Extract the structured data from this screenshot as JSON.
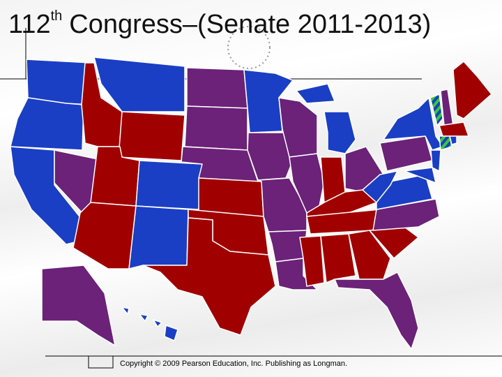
{
  "title": {
    "number": "112",
    "suffix": "th",
    "text": "Congress–(Senate 2011-2013)"
  },
  "copyright": "Copyright © 2009 Pearson Education, Inc. Publishing as Longman."
}
